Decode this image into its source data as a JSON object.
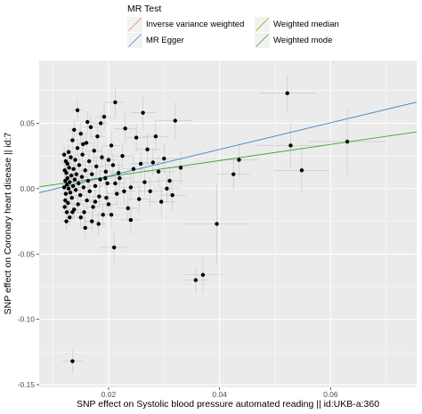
{
  "chart_data": {
    "type": "scatter",
    "title": "",
    "xlabel": "SNP effect on Systolic blood pressure  automated reading || id:UKB-a:360",
    "ylabel": "SNP effect on Coronary heart disease || id:7",
    "xlim": [
      0.0075,
      0.0755
    ],
    "ylim": [
      -0.152,
      0.098
    ],
    "x_ticks": [
      0.02,
      0.04,
      0.06
    ],
    "x_tick_labels": [
      "0.02",
      "0.04",
      "0.06"
    ],
    "y_ticks": [
      0.05,
      0.0,
      -0.05,
      -0.1,
      -0.15
    ],
    "y_tick_labels": [
      "0.05",
      "0.00",
      "-0.05",
      "-0.10",
      "-0.15"
    ],
    "grid": true,
    "legend": {
      "title": "MR Test",
      "placement": "top",
      "entries": [
        {
          "name": "Inverse variance weighted",
          "color": "#f8766d"
        },
        {
          "name": "Weighted median",
          "color": "#7cae00"
        },
        {
          "name": "MR Egger",
          "color": "#3a7fc1"
        },
        {
          "name": "Weighted mode",
          "color": "#3aa52f"
        }
      ]
    },
    "lines": [
      {
        "name": "MR Egger",
        "color": "#3a7fc1",
        "intercept": -0.0108,
        "slope": 1.02
      },
      {
        "name": "Weighted mode",
        "color": "#3aa52f",
        "intercept": -0.0032,
        "slope": 0.617
      }
    ],
    "points": [
      {
        "x": 0.0135,
        "y": -0.132,
        "xerr": 0.0018,
        "yerr": 0.009
      },
      {
        "x": 0.021,
        "y": -0.045,
        "xerr": 0.0025,
        "yerr": 0.012
      },
      {
        "x": 0.0357,
        "y": -0.07,
        "xerr": 0.0022,
        "yerr": 0.01
      },
      {
        "x": 0.037,
        "y": -0.066,
        "xerr": 0.0035,
        "yerr": 0.014
      },
      {
        "x": 0.0395,
        "y": -0.027,
        "xerr": 0.006,
        "yerr": 0.03
      },
      {
        "x": 0.0522,
        "y": 0.073,
        "xerr": 0.005,
        "yerr": 0.014
      },
      {
        "x": 0.0528,
        "y": 0.033,
        "xerr": 0.006,
        "yerr": 0.017
      },
      {
        "x": 0.0548,
        "y": 0.014,
        "xerr": 0.005,
        "yerr": 0.018
      },
      {
        "x": 0.063,
        "y": 0.036,
        "xerr": 0.007,
        "yerr": 0.025
      },
      {
        "x": 0.0435,
        "y": 0.022,
        "xerr": 0.0035,
        "yerr": 0.013
      },
      {
        "x": 0.0425,
        "y": 0.011,
        "xerr": 0.003,
        "yerr": 0.012
      },
      {
        "x": 0.032,
        "y": 0.052,
        "xerr": 0.003,
        "yerr": 0.014
      },
      {
        "x": 0.029,
        "y": 0.013,
        "xerr": 0.0028,
        "yerr": 0.012
      },
      {
        "x": 0.033,
        "y": 0.016,
        "xerr": 0.0025,
        "yerr": 0.013
      },
      {
        "x": 0.031,
        "y": 0.006,
        "xerr": 0.0025,
        "yerr": 0.011
      },
      {
        "x": 0.0305,
        "y": 0.0,
        "xerr": 0.0025,
        "yerr": 0.011
      },
      {
        "x": 0.0295,
        "y": -0.01,
        "xerr": 0.0025,
        "yerr": 0.012
      },
      {
        "x": 0.028,
        "y": 0.02,
        "xerr": 0.0022,
        "yerr": 0.011
      },
      {
        "x": 0.027,
        "y": 0.03,
        "xerr": 0.0022,
        "yerr": 0.012
      },
      {
        "x": 0.0265,
        "y": 0.005,
        "xerr": 0.0022,
        "yerr": 0.01
      },
      {
        "x": 0.0255,
        "y": -0.008,
        "xerr": 0.002,
        "yerr": 0.011
      },
      {
        "x": 0.025,
        "y": 0.039,
        "xerr": 0.002,
        "yerr": 0.011
      },
      {
        "x": 0.0245,
        "y": 0.015,
        "xerr": 0.002,
        "yerr": 0.01
      },
      {
        "x": 0.024,
        "y": 0.001,
        "xerr": 0.002,
        "yerr": 0.01
      },
      {
        "x": 0.0235,
        "y": -0.015,
        "xerr": 0.002,
        "yerr": 0.01
      },
      {
        "x": 0.023,
        "y": 0.046,
        "xerr": 0.002,
        "yerr": 0.012
      },
      {
        "x": 0.0225,
        "y": 0.025,
        "xerr": 0.0018,
        "yerr": 0.01
      },
      {
        "x": 0.022,
        "y": 0.008,
        "xerr": 0.0018,
        "yerr": 0.009
      },
      {
        "x": 0.0215,
        "y": -0.004,
        "xerr": 0.0018,
        "yerr": 0.009
      },
      {
        "x": 0.0212,
        "y": 0.066,
        "xerr": 0.0018,
        "yerr": 0.012
      },
      {
        "x": 0.0208,
        "y": 0.018,
        "xerr": 0.0016,
        "yerr": 0.009
      },
      {
        "x": 0.0205,
        "y": 0.033,
        "xerr": 0.0016,
        "yerr": 0.01
      },
      {
        "x": 0.02,
        "y": -0.012,
        "xerr": 0.0016,
        "yerr": 0.009
      },
      {
        "x": 0.0198,
        "y": 0.004,
        "xerr": 0.0015,
        "yerr": 0.008
      },
      {
        "x": 0.0195,
        "y": 0.013,
        "xerr": 0.0015,
        "yerr": 0.008
      },
      {
        "x": 0.0192,
        "y": 0.055,
        "xerr": 0.0016,
        "yerr": 0.011
      },
      {
        "x": 0.019,
        "y": -0.02,
        "xerr": 0.0015,
        "yerr": 0.009
      },
      {
        "x": 0.0188,
        "y": 0.024,
        "xerr": 0.0015,
        "yerr": 0.008
      },
      {
        "x": 0.0185,
        "y": 0.007,
        "xerr": 0.0014,
        "yerr": 0.008
      },
      {
        "x": 0.0183,
        "y": -0.006,
        "xerr": 0.0014,
        "yerr": 0.008
      },
      {
        "x": 0.018,
        "y": 0.04,
        "xerr": 0.0014,
        "yerr": 0.009
      },
      {
        "x": 0.0178,
        "y": 0.017,
        "xerr": 0.0014,
        "yerr": 0.008
      },
      {
        "x": 0.0176,
        "y": 0.002,
        "xerr": 0.0013,
        "yerr": 0.008
      },
      {
        "x": 0.0174,
        "y": 0.029,
        "xerr": 0.0013,
        "yerr": 0.008
      },
      {
        "x": 0.0172,
        "y": -0.014,
        "xerr": 0.0013,
        "yerr": 0.008
      },
      {
        "x": 0.017,
        "y": 0.011,
        "xerr": 0.0013,
        "yerr": 0.007
      },
      {
        "x": 0.0168,
        "y": 0.047,
        "xerr": 0.0013,
        "yerr": 0.009
      },
      {
        "x": 0.0166,
        "y": -0.002,
        "xerr": 0.0012,
        "yerr": 0.007
      },
      {
        "x": 0.0165,
        "y": 0.021,
        "xerr": 0.0012,
        "yerr": 0.007
      },
      {
        "x": 0.0163,
        "y": 0.006,
        "xerr": 0.0012,
        "yerr": 0.007
      },
      {
        "x": 0.0161,
        "y": -0.009,
        "xerr": 0.0012,
        "yerr": 0.007
      },
      {
        "x": 0.016,
        "y": 0.035,
        "xerr": 0.0012,
        "yerr": 0.008
      },
      {
        "x": 0.0158,
        "y": 0.014,
        "xerr": 0.0012,
        "yerr": 0.007
      },
      {
        "x": 0.0156,
        "y": -0.018,
        "xerr": 0.0012,
        "yerr": 0.008
      },
      {
        "x": 0.0155,
        "y": 0.001,
        "xerr": 0.0011,
        "yerr": 0.007
      },
      {
        "x": 0.0153,
        "y": 0.026,
        "xerr": 0.0011,
        "yerr": 0.007
      },
      {
        "x": 0.0152,
        "y": 0.009,
        "xerr": 0.0011,
        "yerr": 0.007
      },
      {
        "x": 0.015,
        "y": 0.042,
        "xerr": 0.0011,
        "yerr": 0.008
      },
      {
        "x": 0.0149,
        "y": -0.005,
        "xerr": 0.0011,
        "yerr": 0.007
      },
      {
        "x": 0.0147,
        "y": 0.018,
        "xerr": 0.0011,
        "yerr": 0.007
      },
      {
        "x": 0.0146,
        "y": 0.004,
        "xerr": 0.0011,
        "yerr": 0.007
      },
      {
        "x": 0.0145,
        "y": -0.012,
        "xerr": 0.0011,
        "yerr": 0.007
      },
      {
        "x": 0.0144,
        "y": 0.031,
        "xerr": 0.0011,
        "yerr": 0.007
      },
      {
        "x": 0.0142,
        "y": 0.011,
        "xerr": 0.001,
        "yerr": 0.006
      },
      {
        "x": 0.0141,
        "y": -0.001,
        "xerr": 0.001,
        "yerr": 0.006
      },
      {
        "x": 0.014,
        "y": 0.022,
        "xerr": 0.001,
        "yerr": 0.007
      },
      {
        "x": 0.0139,
        "y": 0.007,
        "xerr": 0.001,
        "yerr": 0.006
      },
      {
        "x": 0.0138,
        "y": -0.016,
        "xerr": 0.001,
        "yerr": 0.007
      },
      {
        "x": 0.0137,
        "y": 0.015,
        "xerr": 0.001,
        "yerr": 0.006
      },
      {
        "x": 0.0136,
        "y": 0.002,
        "xerr": 0.001,
        "yerr": 0.006
      },
      {
        "x": 0.0135,
        "y": 0.037,
        "xerr": 0.001,
        "yerr": 0.007
      },
      {
        "x": 0.0134,
        "y": -0.007,
        "xerr": 0.001,
        "yerr": 0.006
      },
      {
        "x": 0.0133,
        "y": 0.01,
        "xerr": 0.001,
        "yerr": 0.006
      },
      {
        "x": 0.0132,
        "y": 0.024,
        "xerr": 0.001,
        "yerr": 0.006
      },
      {
        "x": 0.0131,
        "y": -0.003,
        "xerr": 0.0009,
        "yerr": 0.006
      },
      {
        "x": 0.013,
        "y": 0.005,
        "xerr": 0.0009,
        "yerr": 0.006
      },
      {
        "x": 0.013,
        "y": -0.022,
        "xerr": 0.001,
        "yerr": 0.007
      },
      {
        "x": 0.0129,
        "y": 0.016,
        "xerr": 0.0009,
        "yerr": 0.006
      },
      {
        "x": 0.0128,
        "y": 0.0,
        "xerr": 0.0009,
        "yerr": 0.006
      },
      {
        "x": 0.0128,
        "y": 0.028,
        "xerr": 0.0009,
        "yerr": 0.006
      },
      {
        "x": 0.0127,
        "y": -0.011,
        "xerr": 0.0009,
        "yerr": 0.006
      },
      {
        "x": 0.0126,
        "y": 0.008,
        "xerr": 0.0009,
        "yerr": 0.006
      },
      {
        "x": 0.0126,
        "y": 0.019,
        "xerr": 0.0009,
        "yerr": 0.006
      },
      {
        "x": 0.0125,
        "y": -0.018,
        "xerr": 0.0009,
        "yerr": 0.006
      },
      {
        "x": 0.0125,
        "y": 0.003,
        "xerr": 0.0009,
        "yerr": 0.006
      },
      {
        "x": 0.0124,
        "y": 0.012,
        "xerr": 0.0009,
        "yerr": 0.006
      },
      {
        "x": 0.0124,
        "y": -0.025,
        "xerr": 0.0009,
        "yerr": 0.007
      },
      {
        "x": 0.0123,
        "y": -0.004,
        "xerr": 0.0009,
        "yerr": 0.006
      },
      {
        "x": 0.0123,
        "y": 0.021,
        "xerr": 0.0009,
        "yerr": 0.006
      },
      {
        "x": 0.0122,
        "y": 0.006,
        "xerr": 0.0009,
        "yerr": 0.006
      },
      {
        "x": 0.0122,
        "y": -0.009,
        "xerr": 0.0009,
        "yerr": 0.006
      },
      {
        "x": 0.0121,
        "y": 0.014,
        "xerr": 0.0009,
        "yerr": 0.006
      },
      {
        "x": 0.0121,
        "y": -0.014,
        "xerr": 0.0009,
        "yerr": 0.006
      },
      {
        "x": 0.012,
        "y": 0.001,
        "xerr": 0.0009,
        "yerr": 0.006
      },
      {
        "x": 0.012,
        "y": 0.026,
        "xerr": 0.0009,
        "yerr": 0.006
      },
      {
        "x": 0.0144,
        "y": 0.06,
        "xerr": 0.0011,
        "yerr": 0.009
      },
      {
        "x": 0.0158,
        "y": -0.03,
        "xerr": 0.0012,
        "yerr": 0.008
      },
      {
        "x": 0.017,
        "y": -0.025,
        "xerr": 0.0013,
        "yerr": 0.008
      },
      {
        "x": 0.0182,
        "y": -0.027,
        "xerr": 0.0014,
        "yerr": 0.009
      },
      {
        "x": 0.0186,
        "y": 0.05,
        "xerr": 0.0015,
        "yerr": 0.009
      },
      {
        "x": 0.015,
        "y": -0.022,
        "xerr": 0.0011,
        "yerr": 0.007
      },
      {
        "x": 0.0162,
        "y": 0.051,
        "xerr": 0.0012,
        "yerr": 0.008
      },
      {
        "x": 0.0135,
        "y": -0.018,
        "xerr": 0.001,
        "yerr": 0.006
      },
      {
        "x": 0.0176,
        "y": -0.01,
        "xerr": 0.0013,
        "yerr": 0.008
      },
      {
        "x": 0.02,
        "y": 0.022,
        "xerr": 0.0016,
        "yerr": 0.009
      },
      {
        "x": 0.0205,
        "y": -0.02,
        "xerr": 0.0016,
        "yerr": 0.009
      },
      {
        "x": 0.0218,
        "y": 0.012,
        "xerr": 0.0018,
        "yerr": 0.009
      },
      {
        "x": 0.0228,
        "y": -0.002,
        "xerr": 0.0019,
        "yerr": 0.01
      },
      {
        "x": 0.0262,
        "y": 0.058,
        "xerr": 0.0022,
        "yerr": 0.013
      },
      {
        "x": 0.0275,
        "y": -0.002,
        "xerr": 0.0022,
        "yerr": 0.011
      },
      {
        "x": 0.0285,
        "y": 0.04,
        "xerr": 0.0024,
        "yerr": 0.013
      },
      {
        "x": 0.03,
        "y": 0.023,
        "xerr": 0.0025,
        "yerr": 0.012
      },
      {
        "x": 0.0315,
        "y": -0.005,
        "xerr": 0.0025,
        "yerr": 0.012
      },
      {
        "x": 0.024,
        "y": -0.024,
        "xerr": 0.002,
        "yerr": 0.011
      },
      {
        "x": 0.0258,
        "y": 0.019,
        "xerr": 0.0021,
        "yerr": 0.01
      },
      {
        "x": 0.0138,
        "y": 0.045,
        "xerr": 0.001,
        "yerr": 0.008
      },
      {
        "x": 0.0154,
        "y": 0.034,
        "xerr": 0.0011,
        "yerr": 0.007
      },
      {
        "x": 0.0194,
        "y": 0.008,
        "xerr": 0.0015,
        "yerr": 0.008
      },
      {
        "x": 0.0212,
        "y": 0.004,
        "xerr": 0.0017,
        "yerr": 0.009
      },
      {
        "x": 0.0196,
        "y": -0.007,
        "xerr": 0.0015,
        "yerr": 0.008
      }
    ]
  }
}
